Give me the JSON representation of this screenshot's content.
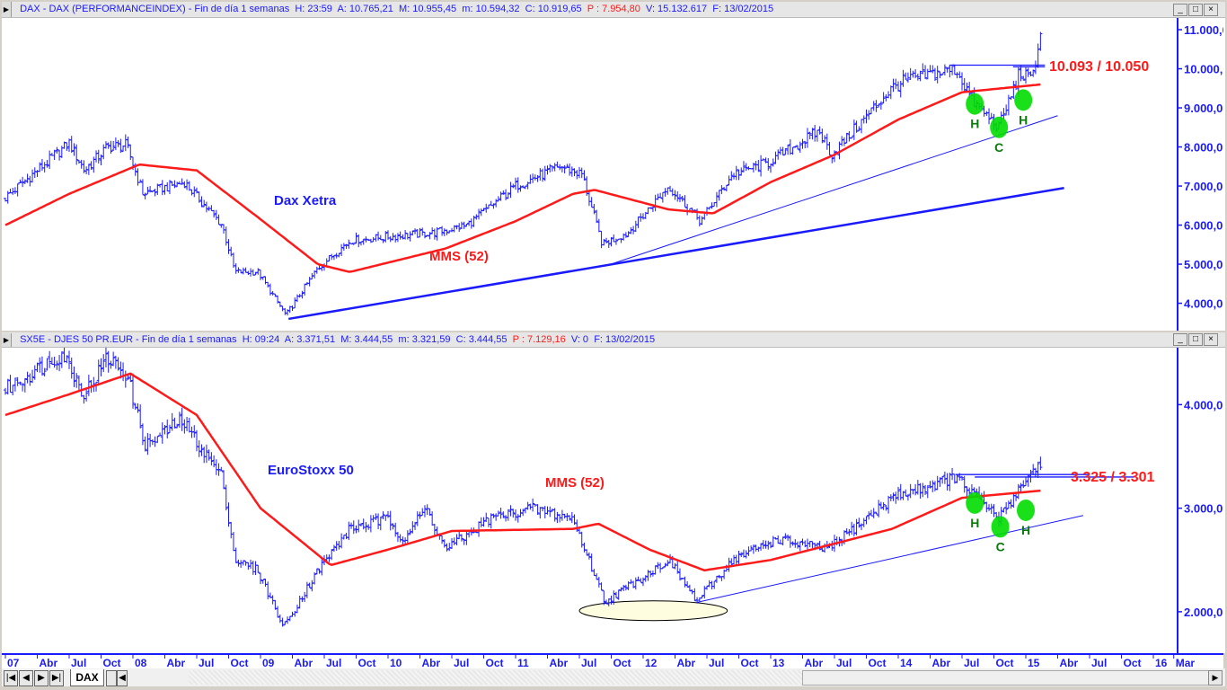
{
  "top_header": {
    "symbol": "DAX - DAX (PERFORMANCEINDEX) - Fin de día 1 semanas",
    "h": "H: 23:59",
    "a": "A: 10.765,21",
    "m_high": "M: 10.955,45",
    "m_low": "m: 10.594,32",
    "c": "C: 10.919,65",
    "p": "P : 7.954,80",
    "v": "V: 15.132.617",
    "f": "F: 13/02/2015"
  },
  "bottom_header": {
    "symbol": "SX5E - DJES 50 PR.EUR - Fin de día 1 semanas",
    "h": "H: 09:24",
    "a": "A: 3.371,51",
    "m_high": "M: 3.444,55",
    "m_low": "m: 3.321,59",
    "c": "C: 3.444,55",
    "p": "P : 7.129,16",
    "v": "V: 0",
    "f": "F: 13/02/2015"
  },
  "window_buttons": {
    "minimize": "_",
    "maximize": "□",
    "close": "×"
  },
  "tabs": {
    "active": "DAX",
    "nav": [
      "|◀",
      "◀",
      "▶",
      "▶|"
    ]
  },
  "colors": {
    "price": "#1a1aff",
    "mms": "#ff1a1a",
    "annotation": "#00dd00",
    "pattern_letters": "#0a7a0a",
    "ellipse_fill": "#fffde0"
  },
  "time_axis": {
    "labels": [
      {
        "t": 2007.0,
        "label": "07"
      },
      {
        "t": 2007.25,
        "label": "Abr"
      },
      {
        "t": 2007.5,
        "label": "Jul"
      },
      {
        "t": 2007.75,
        "label": "Oct"
      },
      {
        "t": 2008.0,
        "label": "08"
      },
      {
        "t": 2008.25,
        "label": "Abr"
      },
      {
        "t": 2008.5,
        "label": "Jul"
      },
      {
        "t": 2008.75,
        "label": "Oct"
      },
      {
        "t": 2009.0,
        "label": "09"
      },
      {
        "t": 2009.25,
        "label": "Abr"
      },
      {
        "t": 2009.5,
        "label": "Jul"
      },
      {
        "t": 2009.75,
        "label": "Oct"
      },
      {
        "t": 2010.0,
        "label": "10"
      },
      {
        "t": 2010.25,
        "label": "Abr"
      },
      {
        "t": 2010.5,
        "label": "Jul"
      },
      {
        "t": 2010.75,
        "label": "Oct"
      },
      {
        "t": 2011.0,
        "label": "11"
      },
      {
        "t": 2011.25,
        "label": "Abr"
      },
      {
        "t": 2011.5,
        "label": "Jul"
      },
      {
        "t": 2011.75,
        "label": "Oct"
      },
      {
        "t": 2012.0,
        "label": "12"
      },
      {
        "t": 2012.25,
        "label": "Abr"
      },
      {
        "t": 2012.5,
        "label": "Jul"
      },
      {
        "t": 2012.75,
        "label": "Oct"
      },
      {
        "t": 2013.0,
        "label": "13"
      },
      {
        "t": 2013.25,
        "label": "Abr"
      },
      {
        "t": 2013.5,
        "label": "Jul"
      },
      {
        "t": 2013.75,
        "label": "Oct"
      },
      {
        "t": 2014.0,
        "label": "14"
      },
      {
        "t": 2014.25,
        "label": "Abr"
      },
      {
        "t": 2014.5,
        "label": "Jul"
      },
      {
        "t": 2014.75,
        "label": "Oct"
      },
      {
        "t": 2015.0,
        "label": "15"
      },
      {
        "t": 2015.25,
        "label": "Abr"
      },
      {
        "t": 2015.5,
        "label": "Jul"
      },
      {
        "t": 2015.75,
        "label": "Oct"
      },
      {
        "t": 2016.0,
        "label": "16"
      },
      {
        "t": 2016.16,
        "label": "Mar"
      }
    ]
  },
  "chart_data": [
    {
      "type": "ohlc-bar",
      "name": "DAX",
      "title_label": "Dax Xetra",
      "ma_label": "MMS (52)",
      "level_label": "10.093 / 10.050",
      "ylim": [
        3300,
        11300
      ],
      "y_ticks": [
        4000,
        5000,
        6000,
        7000,
        8000,
        9000,
        10000,
        11000
      ],
      "y_tick_labels": [
        "4.000,0",
        "5.000,0",
        "6.000,0",
        "7.000,0",
        "8.000,0",
        "9.000,0",
        "10.000,0",
        "11.000,0"
      ],
      "price_keypoints": [
        [
          2007.0,
          6700
        ],
        [
          2007.5,
          8100
        ],
        [
          2007.62,
          7400
        ],
        [
          2007.8,
          8000
        ],
        [
          2007.95,
          8050
        ],
        [
          2008.08,
          6800
        ],
        [
          2008.4,
          7100
        ],
        [
          2008.7,
          6000
        ],
        [
          2008.8,
          4800
        ],
        [
          2008.98,
          4800
        ],
        [
          2009.2,
          3700
        ],
        [
          2009.45,
          4900
        ],
        [
          2009.7,
          5600
        ],
        [
          2010.0,
          5700
        ],
        [
          2010.35,
          5800
        ],
        [
          2010.62,
          6000
        ],
        [
          2011.0,
          7000
        ],
        [
          2011.35,
          7500
        ],
        [
          2011.52,
          7300
        ],
        [
          2011.68,
          5500
        ],
        [
          2011.88,
          5800
        ],
        [
          2012.2,
          7000
        ],
        [
          2012.45,
          6100
        ],
        [
          2012.7,
          7300
        ],
        [
          2012.98,
          7600
        ],
        [
          2013.38,
          8400
        ],
        [
          2013.48,
          7800
        ],
        [
          2013.95,
          9500
        ],
        [
          2014.05,
          9700
        ],
        [
          2014.45,
          10000
        ],
        [
          2014.6,
          9100
        ],
        [
          2014.79,
          8500
        ],
        [
          2014.95,
          9900
        ],
        [
          2015.04,
          9700
        ],
        [
          2015.12,
          10900
        ]
      ],
      "mms52": [
        [
          2007.0,
          6000
        ],
        [
          2007.5,
          6800
        ],
        [
          2008.05,
          7550
        ],
        [
          2008.5,
          7400
        ],
        [
          2008.98,
          6200
        ],
        [
          2009.45,
          5000
        ],
        [
          2009.7,
          4800
        ],
        [
          2010.45,
          5400
        ],
        [
          2011.0,
          6100
        ],
        [
          2011.45,
          6800
        ],
        [
          2011.62,
          6900
        ],
        [
          2012.2,
          6400
        ],
        [
          2012.55,
          6300
        ],
        [
          2013.0,
          7100
        ],
        [
          2013.5,
          7800
        ],
        [
          2014.0,
          8700
        ],
        [
          2014.5,
          9400
        ],
        [
          2015.12,
          9600
        ]
      ],
      "trendlines": [
        {
          "from": [
            2009.22,
            3600
          ],
          "to": [
            2015.3,
            6950
          ],
          "weight": "thick"
        },
        {
          "from": [
            2011.7,
            4950
          ],
          "to": [
            2015.25,
            8800
          ],
          "weight": "thin"
        }
      ],
      "levels": [
        {
          "value": 10093,
          "from": 2014.4,
          "to": 2015.15
        },
        {
          "value": 10050,
          "from": 2014.9,
          "to": 2015.15
        }
      ],
      "pattern": [
        {
          "label": "H",
          "t": 2014.6,
          "v": 9100
        },
        {
          "label": "C",
          "t": 2014.79,
          "v": 8500
        },
        {
          "label": "H",
          "t": 2014.98,
          "v": 9200
        }
      ]
    },
    {
      "type": "ohlc-bar",
      "name": "SX5E",
      "title_label": "EuroStoxx 50",
      "ma_label": "MMS (52)",
      "level_label": "3.325 / 3.301",
      "ylim": [
        1600,
        4550
      ],
      "y_ticks": [
        2000,
        3000,
        4000
      ],
      "y_tick_labels": [
        "2.000,0",
        "3.000,0",
        "4.000,0"
      ],
      "price_keypoints": [
        [
          2007.0,
          4150
        ],
        [
          2007.45,
          4500
        ],
        [
          2007.62,
          4100
        ],
        [
          2007.8,
          4450
        ],
        [
          2007.95,
          4300
        ],
        [
          2008.1,
          3600
        ],
        [
          2008.38,
          3850
        ],
        [
          2008.7,
          3300
        ],
        [
          2008.8,
          2500
        ],
        [
          2008.98,
          2400
        ],
        [
          2009.18,
          1850
        ],
        [
          2009.45,
          2400
        ],
        [
          2009.7,
          2800
        ],
        [
          2010.0,
          2900
        ],
        [
          2010.12,
          2700
        ],
        [
          2010.3,
          3000
        ],
        [
          2010.45,
          2600
        ],
        [
          2010.8,
          2900
        ],
        [
          2011.12,
          3000
        ],
        [
          2011.45,
          2900
        ],
        [
          2011.7,
          2100
        ],
        [
          2011.95,
          2300
        ],
        [
          2012.2,
          2500
        ],
        [
          2012.42,
          2100
        ],
        [
          2012.7,
          2500
        ],
        [
          2013.05,
          2700
        ],
        [
          2013.45,
          2600
        ],
        [
          2013.95,
          3100
        ],
        [
          2014.45,
          3300
        ],
        [
          2014.79,
          2900
        ],
        [
          2014.95,
          3200
        ],
        [
          2015.12,
          3450
        ]
      ],
      "mms52": [
        [
          2007.0,
          3900
        ],
        [
          2007.5,
          4100
        ],
        [
          2007.98,
          4300
        ],
        [
          2008.5,
          3900
        ],
        [
          2009.0,
          3000
        ],
        [
          2009.55,
          2450
        ],
        [
          2010.0,
          2600
        ],
        [
          2010.5,
          2780
        ],
        [
          2011.45,
          2800
        ],
        [
          2011.65,
          2850
        ],
        [
          2012.05,
          2600
        ],
        [
          2012.48,
          2400
        ],
        [
          2013.0,
          2500
        ],
        [
          2013.95,
          2800
        ],
        [
          2014.5,
          3100
        ],
        [
          2015.12,
          3170
        ]
      ],
      "trendlines": [
        {
          "from": [
            2012.42,
            2090
          ],
          "to": [
            2015.45,
            2930
          ],
          "weight": "thin"
        }
      ],
      "levels": [
        {
          "value": 3325,
          "from": 2014.45,
          "to": 2015.5
        },
        {
          "value": 3301,
          "from": 2014.6,
          "to": 2015.85
        }
      ],
      "pattern": [
        {
          "label": "H",
          "t": 2014.6,
          "v": 3050
        },
        {
          "label": "C",
          "t": 2014.8,
          "v": 2820
        },
        {
          "label": "H",
          "t": 2015.0,
          "v": 2980
        }
      ],
      "ellipse": {
        "t_from": 2011.5,
        "t_to": 2012.66,
        "v_center": 2010,
        "v_half_height": 95
      }
    }
  ]
}
